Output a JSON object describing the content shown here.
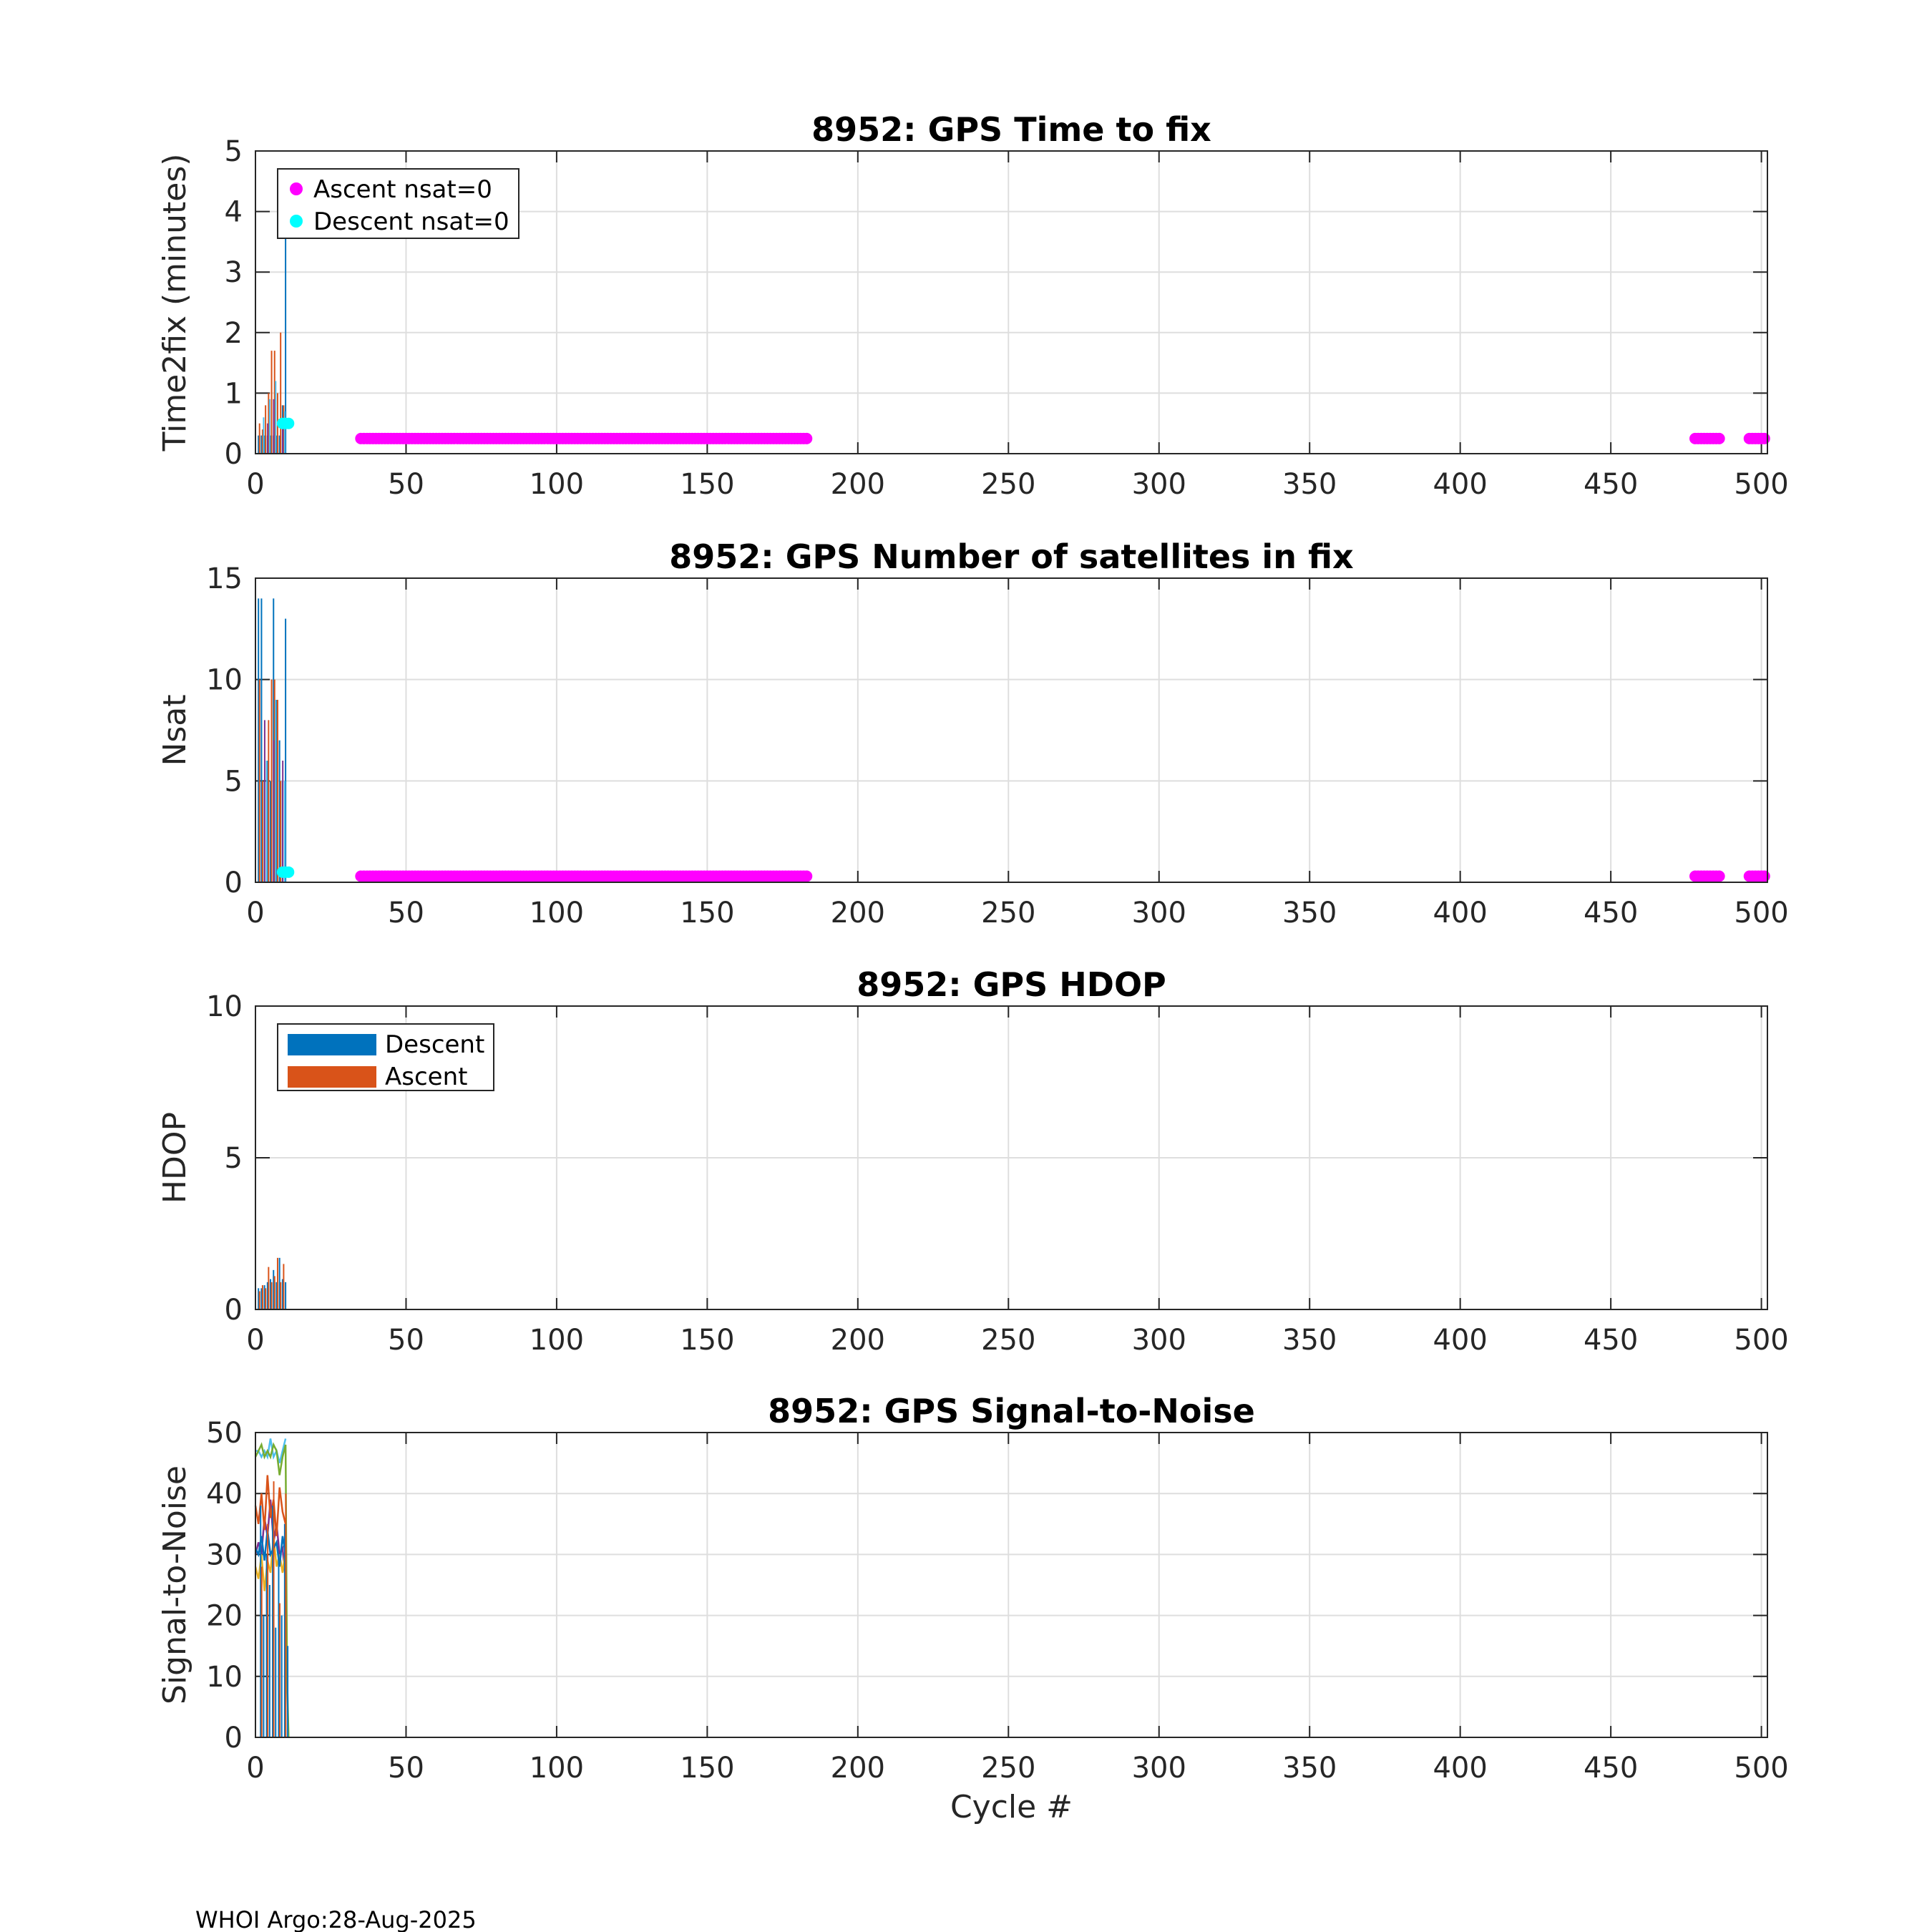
{
  "footer": "WHOI Argo:28-Aug-2025",
  "colors": {
    "magenta": "#ff00ff",
    "cyan": "#00ffff",
    "blue": "#0072bd",
    "orange": "#d95319",
    "grid": "#dedede",
    "axis": "#262626"
  },
  "chart_data": [
    {
      "type": "bar",
      "title": "8952: GPS Time to fix",
      "xlabel": "",
      "ylabel": "Time2fix (minutes)",
      "xlim": [
        0,
        502
      ],
      "ylim": [
        0,
        5
      ],
      "xticks": [
        "0",
        "50",
        "100",
        "150",
        "200",
        "250",
        "300",
        "350",
        "400",
        "450",
        "500"
      ],
      "yticks": [
        "0",
        "1",
        "2",
        "3",
        "4",
        "5"
      ],
      "grid": true,
      "legend": {
        "placement": "top-left",
        "entries": [
          "Ascent nsat=0",
          "Descent nsat=0"
        ]
      },
      "series": [
        {
          "kind": "bar",
          "color": "#0072bd",
          "points": [
            [
              1,
              0.3
            ],
            [
              2,
              0.3
            ],
            [
              3,
              0.3
            ],
            [
              4,
              0.3
            ],
            [
              5,
              0.3
            ],
            [
              6,
              0.3
            ],
            [
              7,
              0.3
            ],
            [
              8,
              0.3
            ],
            [
              9,
              0.8
            ],
            [
              10,
              3.6
            ]
          ]
        },
        {
          "kind": "bar",
          "color": "#d95319",
          "points": [
            [
              1,
              0.5
            ],
            [
              2,
              0.4
            ],
            [
              3,
              0.8
            ],
            [
              4,
              1.0
            ],
            [
              5,
              1.7
            ],
            [
              6,
              1.7
            ],
            [
              7,
              1.0
            ],
            [
              8,
              2.0
            ],
            [
              9,
              0.8
            ]
          ]
        },
        {
          "kind": "bar",
          "color": "#4dbeee",
          "points": [
            [
              2,
              0.6
            ],
            [
              4,
              0.9
            ],
            [
              6,
              1.2
            ],
            [
              9,
              0.7
            ]
          ]
        },
        {
          "kind": "bar",
          "color": "#7e2f8e",
          "points": [
            [
              3,
              0.5
            ],
            [
              5,
              0.9
            ],
            [
              8,
              0.5
            ]
          ]
        },
        {
          "name": "Ascent nsat=0",
          "kind": "dots",
          "color": "#ff00ff",
          "y": 0.25,
          "ranges": [
            [
              35,
              183
            ],
            [
              478,
              486
            ],
            [
              496,
              501
            ]
          ]
        },
        {
          "name": "Descent nsat=0",
          "kind": "dots",
          "color": "#00ffff",
          "y": 0.5,
          "ranges": [
            [
              9,
              11
            ]
          ]
        }
      ]
    },
    {
      "type": "bar",
      "title": "8952: GPS Number of satellites in fix",
      "xlabel": "",
      "ylabel": "Nsat",
      "xlim": [
        0,
        502
      ],
      "ylim": [
        0,
        15
      ],
      "xticks": [
        "0",
        "50",
        "100",
        "150",
        "200",
        "250",
        "300",
        "350",
        "400",
        "450",
        "500"
      ],
      "yticks": [
        "0",
        "5",
        "10",
        "15"
      ],
      "grid": true,
      "legend": null,
      "series": [
        {
          "kind": "bar",
          "color": "#0072bd",
          "points": [
            [
              1,
              14
            ],
            [
              2,
              14
            ],
            [
              3,
              5
            ],
            [
              4,
              6
            ],
            [
              5,
              5
            ],
            [
              6,
              14
            ],
            [
              7,
              9
            ],
            [
              8,
              7
            ],
            [
              9,
              5
            ],
            [
              10,
              13
            ]
          ]
        },
        {
          "kind": "bar",
          "color": "#d95319",
          "points": [
            [
              1,
              10
            ],
            [
              2,
              5
            ],
            [
              4,
              8
            ],
            [
              5,
              10
            ],
            [
              6,
              10
            ],
            [
              7,
              9
            ],
            [
              8,
              5
            ]
          ]
        },
        {
          "kind": "bar",
          "color": "#4dbeee",
          "points": [
            [
              3,
              6
            ],
            [
              6,
              9
            ],
            [
              9,
              5
            ]
          ]
        },
        {
          "kind": "bar",
          "color": "#7e2f8e",
          "points": [
            [
              2,
              8
            ],
            [
              5,
              7
            ],
            [
              8,
              6
            ]
          ]
        },
        {
          "kind": "dots",
          "color": "#ff00ff",
          "y": 0.3,
          "ranges": [
            [
              35,
              183
            ],
            [
              478,
              486
            ],
            [
              496,
              501
            ]
          ]
        },
        {
          "kind": "dots",
          "color": "#00ffff",
          "y": 0.5,
          "ranges": [
            [
              9,
              11
            ]
          ]
        }
      ]
    },
    {
      "type": "bar",
      "title": "8952: GPS HDOP",
      "xlabel": "",
      "ylabel": "HDOP",
      "xlim": [
        0,
        502
      ],
      "ylim": [
        0,
        10
      ],
      "xticks": [
        "0",
        "50",
        "100",
        "150",
        "200",
        "250",
        "300",
        "350",
        "400",
        "450",
        "500"
      ],
      "yticks": [
        "0",
        "5",
        "10"
      ],
      "grid": true,
      "legend": {
        "placement": "top-left",
        "entries": [
          "Descent",
          "Ascent"
        ]
      },
      "series": [
        {
          "name": "Descent",
          "kind": "bar",
          "color": "#0072bd",
          "points": [
            [
              1,
              0.7
            ],
            [
              2,
              0.7
            ],
            [
              3,
              0.8
            ],
            [
              4,
              0.9
            ],
            [
              5,
              1.0
            ],
            [
              6,
              1.3
            ],
            [
              7,
              0.9
            ],
            [
              8,
              1.7
            ],
            [
              9,
              1.0
            ],
            [
              10,
              0.9
            ]
          ]
        },
        {
          "name": "Ascent",
          "kind": "bar",
          "color": "#d95319",
          "points": [
            [
              1,
              0.6
            ],
            [
              2,
              0.8
            ],
            [
              3,
              0.7
            ],
            [
              4,
              1.4
            ],
            [
              5,
              0.9
            ],
            [
              6,
              1.1
            ],
            [
              7,
              1.7
            ],
            [
              8,
              0.9
            ],
            [
              9,
              1.5
            ]
          ]
        }
      ]
    },
    {
      "type": "line",
      "title": "8952: GPS Signal-to-Noise",
      "xlabel": "Cycle #",
      "ylabel": "Signal-to-Noise",
      "xlim": [
        0,
        502
      ],
      "ylim": [
        0,
        50
      ],
      "xticks": [
        "0",
        "50",
        "100",
        "150",
        "200",
        "250",
        "300",
        "350",
        "400",
        "450",
        "500"
      ],
      "yticks": [
        "0",
        "10",
        "20",
        "30",
        "40",
        "50"
      ],
      "grid": true,
      "legend": null,
      "series": [
        {
          "kind": "line",
          "color": "#4dbeee",
          "points": [
            [
              0,
              47
            ],
            [
              1,
              47
            ],
            [
              2,
              46
            ],
            [
              3,
              47
            ],
            [
              4,
              46
            ],
            [
              5,
              49
            ],
            [
              6,
              46
            ],
            [
              7,
              47
            ],
            [
              8,
              45
            ],
            [
              9,
              47
            ],
            [
              10,
              49
            ]
          ]
        },
        {
          "kind": "line",
          "color": "#77ac30",
          "points": [
            [
              0,
              46
            ],
            [
              1,
              47
            ],
            [
              2,
              48
            ],
            [
              3,
              46
            ],
            [
              4,
              47
            ],
            [
              5,
              46
            ],
            [
              6,
              48
            ],
            [
              7,
              47
            ],
            [
              8,
              43
            ],
            [
              9,
              46
            ],
            [
              10,
              48
            ],
            [
              10.5,
              10
            ],
            [
              11,
              0
            ]
          ]
        },
        {
          "kind": "line",
          "color": "#7e2f8e",
          "points": [
            [
              0,
              30
            ],
            [
              1,
              32
            ],
            [
              2,
              30
            ],
            [
              3,
              36
            ],
            [
              4,
              33
            ],
            [
              5,
              39
            ],
            [
              6,
              32
            ],
            [
              7,
              35
            ],
            [
              8,
              30
            ],
            [
              9,
              31
            ],
            [
              10,
              26
            ]
          ]
        },
        {
          "kind": "line",
          "color": "#edb120",
          "points": [
            [
              0,
              28
            ],
            [
              1,
              26
            ],
            [
              2,
              30
            ],
            [
              3,
              24
            ],
            [
              4,
              29
            ],
            [
              5,
              27
            ],
            [
              6,
              33
            ],
            [
              7,
              28
            ],
            [
              8,
              30
            ],
            [
              9,
              27
            ],
            [
              10,
              31
            ]
          ]
        },
        {
          "kind": "line",
          "color": "#d95319",
          "points": [
            [
              0,
              38
            ],
            [
              1,
              35
            ],
            [
              2,
              40
            ],
            [
              3,
              34
            ],
            [
              4,
              43
            ],
            [
              5,
              36
            ],
            [
              6,
              39
            ],
            [
              7,
              33
            ],
            [
              8,
              41
            ],
            [
              9,
              37
            ],
            [
              10,
              35
            ]
          ]
        },
        {
          "kind": "line",
          "color": "#0072bd",
          "points": [
            [
              0,
              31
            ],
            [
              1,
              30
            ],
            [
              2,
              33
            ],
            [
              3,
              29
            ],
            [
              4,
              34
            ],
            [
              5,
              30
            ],
            [
              6,
              31
            ],
            [
              7,
              32
            ],
            [
              8,
              28
            ],
            [
              9,
              33
            ],
            [
              10,
              30
            ]
          ]
        },
        {
          "kind": "bar",
          "color": "#0072bd",
          "points": [
            [
              1,
              38
            ],
            [
              2,
              20
            ],
            [
              3,
              30
            ],
            [
              4,
              25
            ],
            [
              5,
              38
            ],
            [
              6,
              18
            ],
            [
              7,
              30
            ],
            [
              8,
              20
            ],
            [
              9,
              35
            ],
            [
              10,
              15
            ]
          ]
        },
        {
          "kind": "bar",
          "color": "#d95319",
          "points": [
            [
              1,
              28
            ],
            [
              3,
              35
            ],
            [
              5,
              42
            ],
            [
              7,
              22
            ],
            [
              9,
              40
            ]
          ]
        }
      ]
    }
  ]
}
